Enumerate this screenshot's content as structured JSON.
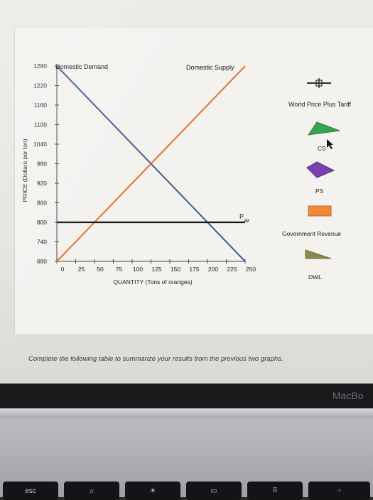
{
  "chart_data": {
    "type": "line",
    "title": "",
    "xlabel": "QUANTITY (Tons of oranges)",
    "ylabel": "PRICE (Dollars per ton)",
    "xlim": [
      0,
      250
    ],
    "ylim": [
      680,
      1280
    ],
    "x_ticks": [
      "0",
      "25",
      "50",
      "75",
      "100",
      "125",
      "150",
      "175",
      "200",
      "225",
      "250"
    ],
    "y_ticks": [
      "1280",
      "1220",
      "1160",
      "1100",
      "1040",
      "980",
      "920",
      "860",
      "800",
      "740",
      "680"
    ],
    "series": [
      {
        "name": "Domestic Demand",
        "color": "#3f5f8f",
        "x": [
          0,
          250
        ],
        "y": [
          1280,
          680
        ]
      },
      {
        "name": "Domestic Supply",
        "color": "#e8702a",
        "x": [
          0,
          250
        ],
        "y": [
          680,
          1280
        ]
      },
      {
        "name": "Pw",
        "color": "#1a1a1a",
        "x": [
          0,
          250
        ],
        "y": [
          800,
          800
        ]
      }
    ],
    "line_labels": {
      "demand": "Domestic Demand",
      "supply": "Domestic Supply",
      "pw_main": "P",
      "pw_sub": "W"
    },
    "legend": [
      {
        "label": "World Price Plus Tariff",
        "icon": "line-with-cross",
        "color": "#2f2f2f"
      },
      {
        "label": "CS",
        "icon": "triangle",
        "color": "#3aa24a"
      },
      {
        "label": "PS",
        "icon": "triangle",
        "color": "#7b3fae"
      },
      {
        "label": "Government Revenue",
        "icon": "rectangle",
        "color": "#f08a3a"
      },
      {
        "label": "DWL",
        "icon": "triangle",
        "color": "#8a8a4a"
      }
    ],
    "legend_placement": "right",
    "grid": false
  },
  "instruction": "Complete the following table to summarize your results from the previous two graphs.",
  "brand": "MacBo",
  "keys": [
    "esc",
    "",
    "",
    "",
    "",
    ""
  ]
}
